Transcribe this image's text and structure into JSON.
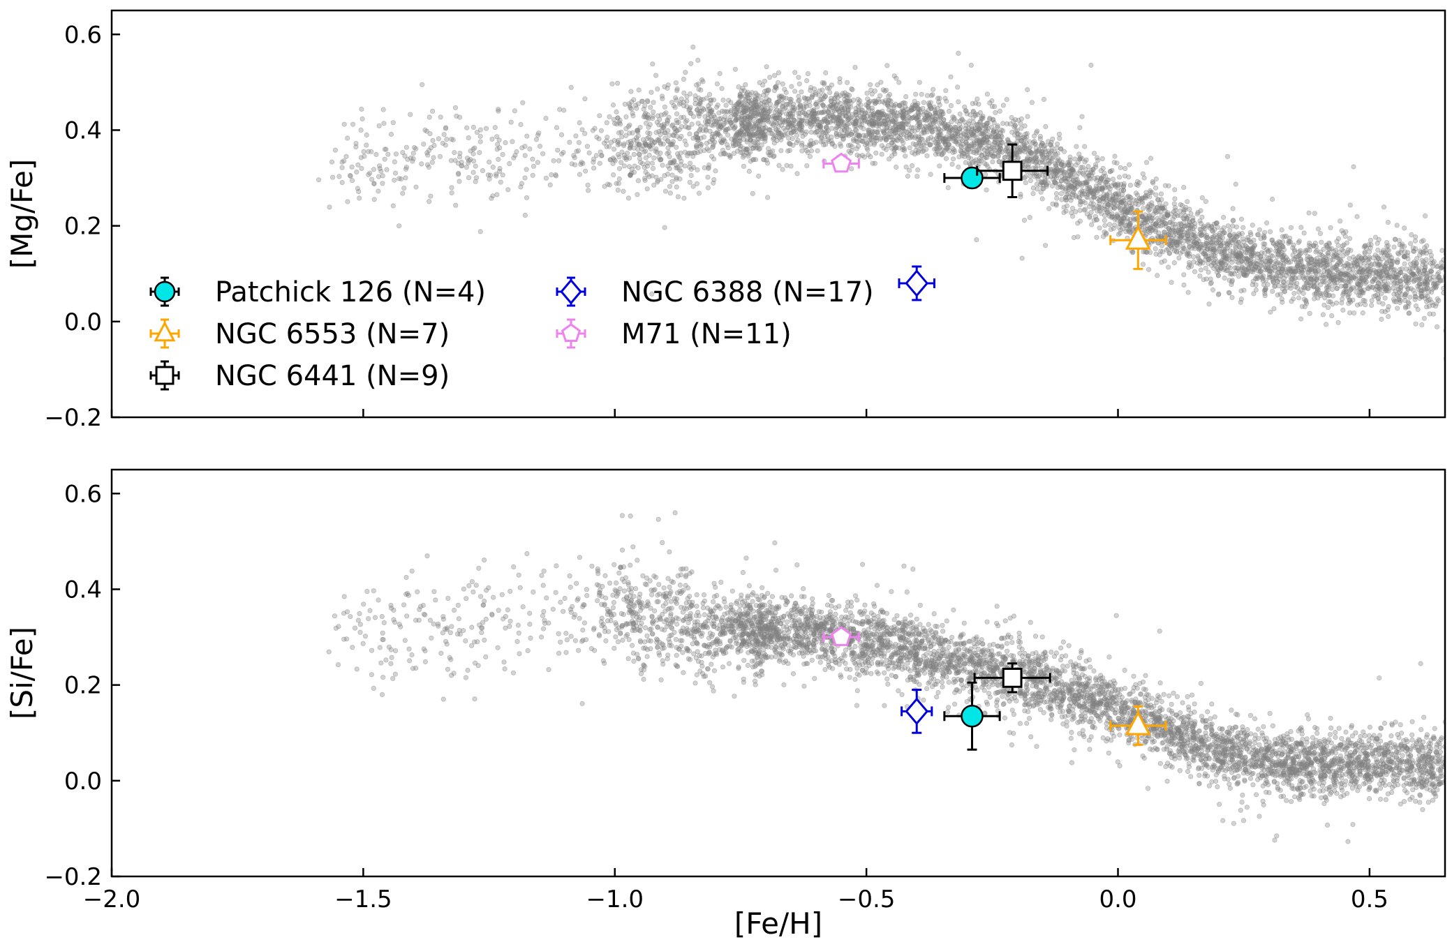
{
  "chart_data": [
    {
      "type": "scatter",
      "panel": "top",
      "xlabel": "",
      "ylabel": "[Mg/Fe]",
      "xlim": [
        -2.0,
        0.65
      ],
      "ylim": [
        -0.2,
        0.65
      ],
      "xticks": [
        -2.0,
        -1.5,
        -1.0,
        -0.5,
        0.0,
        0.5
      ],
      "yticks": [
        -0.2,
        0.0,
        0.2,
        0.4,
        0.6
      ],
      "ytick_labels": [
        "−0.2",
        "0.0",
        "0.2",
        "0.4",
        "0.6"
      ],
      "background_field": {
        "color": "#808080",
        "description_points": "thousands of field stars",
        "trend": [
          [
            -1.5,
            0.34
          ],
          [
            -1.2,
            0.34
          ],
          [
            -1.0,
            0.37
          ],
          [
            -0.8,
            0.41
          ],
          [
            -0.6,
            0.43
          ],
          [
            -0.4,
            0.41
          ],
          [
            -0.2,
            0.36
          ],
          [
            0.0,
            0.24
          ],
          [
            0.2,
            0.15
          ],
          [
            0.35,
            0.11
          ],
          [
            0.5,
            0.1
          ],
          [
            0.65,
            0.09
          ]
        ]
      },
      "series": [
        {
          "name": "Patchick 126 (N=4)",
          "marker": "circle",
          "color": "#00e5e5",
          "edge": "#000000",
          "x": -0.29,
          "y": 0.3,
          "xerr": 0.055,
          "yerr": 0.02
        },
        {
          "name": "NGC 6553 (N=7)",
          "marker": "triangle",
          "color": "#ffa500",
          "edge": "#ffa500",
          "x": 0.04,
          "y": 0.17,
          "xerr": 0.055,
          "yerr": 0.06
        },
        {
          "name": "NGC 6441 (N=9)",
          "marker": "square",
          "color": "#ffffff",
          "edge": "#000000",
          "x": -0.21,
          "y": 0.315,
          "xerr": 0.07,
          "yerr": 0.055
        },
        {
          "name": "NGC 6388 (N=17)",
          "marker": "diamond",
          "color": "#ffffff",
          "edge": "#0000dd",
          "x": -0.4,
          "y": 0.08,
          "xerr": 0.035,
          "yerr": 0.035
        },
        {
          "name": "M71 (N=11)",
          "marker": "pentagon",
          "color": "#ffffff",
          "edge": "#ee82ee",
          "x": -0.55,
          "y": 0.33,
          "xerr": 0.035,
          "yerr": 0.015
        }
      ]
    },
    {
      "type": "scatter",
      "panel": "bottom",
      "xlabel": "[Fe/H]",
      "ylabel": "[Si/Fe]",
      "xlim": [
        -2.0,
        0.65
      ],
      "ylim": [
        -0.2,
        0.65
      ],
      "xticks": [
        -2.0,
        -1.5,
        -1.0,
        -0.5,
        0.0,
        0.5
      ],
      "xtick_labels": [
        "−2.0",
        "−1.5",
        "−1.0",
        "−0.5",
        "0.0",
        "0.5"
      ],
      "yticks": [
        -0.2,
        0.0,
        0.2,
        0.4,
        0.6
      ],
      "ytick_labels": [
        "−0.2",
        "0.0",
        "0.2",
        "0.4",
        "0.6"
      ],
      "background_field": {
        "color": "#808080",
        "description_points": "thousands of field stars",
        "trend": [
          [
            -1.5,
            0.31
          ],
          [
            -1.2,
            0.33
          ],
          [
            -1.0,
            0.35
          ],
          [
            -0.8,
            0.32
          ],
          [
            -0.6,
            0.31
          ],
          [
            -0.4,
            0.27
          ],
          [
            -0.2,
            0.22
          ],
          [
            0.0,
            0.15
          ],
          [
            0.2,
            0.06
          ],
          [
            0.35,
            0.035
          ],
          [
            0.5,
            0.04
          ],
          [
            0.65,
            0.03
          ]
        ]
      },
      "series": [
        {
          "name": "Patchick 126 (N=4)",
          "marker": "circle",
          "color": "#00e5e5",
          "edge": "#000000",
          "x": -0.29,
          "y": 0.135,
          "xerr": 0.055,
          "yerr": 0.07
        },
        {
          "name": "NGC 6553 (N=7)",
          "marker": "triangle",
          "color": "#ffa500",
          "edge": "#ffa500",
          "x": 0.04,
          "y": 0.115,
          "xerr": 0.055,
          "yerr": 0.04
        },
        {
          "name": "NGC 6441 (N=9)",
          "marker": "square",
          "color": "#ffffff",
          "edge": "#000000",
          "x": -0.21,
          "y": 0.215,
          "xerr": 0.075,
          "yerr": 0.03
        },
        {
          "name": "NGC 6388 (N=17)",
          "marker": "diamond",
          "color": "#ffffff",
          "edge": "#0000dd",
          "x": -0.4,
          "y": 0.145,
          "xerr": 0.03,
          "yerr": 0.045
        },
        {
          "name": "M71 (N=11)",
          "marker": "pentagon",
          "color": "#ffffff",
          "edge": "#ee82ee",
          "x": -0.55,
          "y": 0.3,
          "xerr": 0.035,
          "yerr": 0.015
        }
      ]
    }
  ],
  "legend": {
    "placement": "lower-left of top panel",
    "entries": [
      {
        "label": "Patchick 126 (N=4)",
        "series": 0
      },
      {
        "label": "NGC 6553 (N=7)",
        "series": 1
      },
      {
        "label": "NGC 6441 (N=9)",
        "series": 2
      },
      {
        "label": "NGC 6388 (N=17)",
        "series": 3
      },
      {
        "label": "M71 (N=11)",
        "series": 4
      }
    ]
  }
}
